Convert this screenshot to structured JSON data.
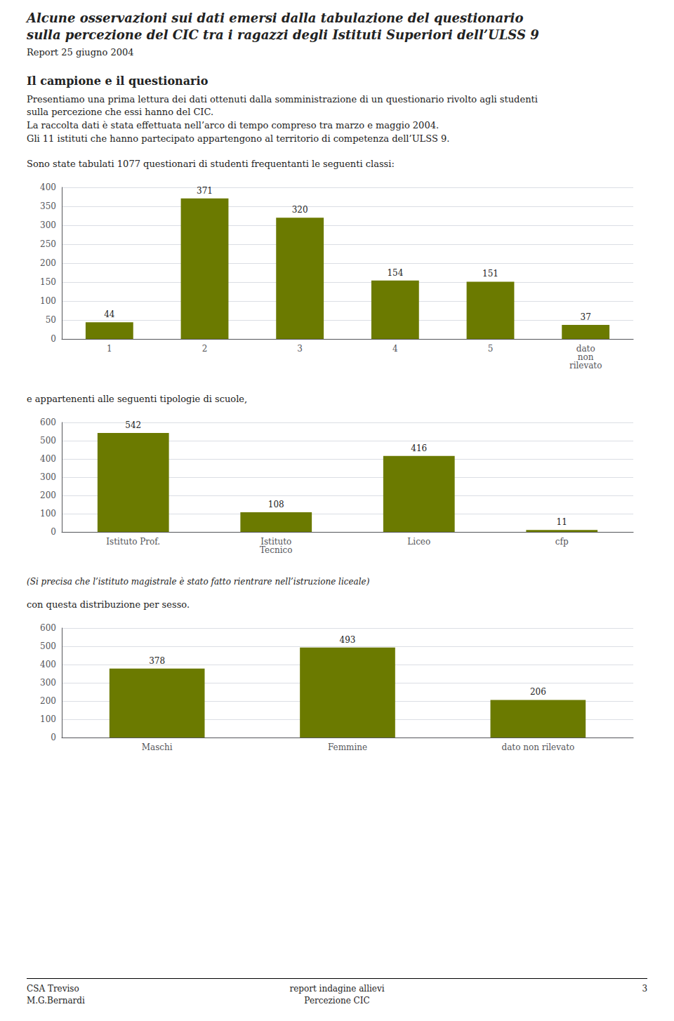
{
  "title": "Alcune osservazioni sui dati emersi dalla tabulazione del questionario\nsulla percezione del CIC tra i ragazzi degli Istituti Superiori dell’ULSS 9",
  "subtitle": "Report 25 giugno 2004",
  "heading": "Il campione e il questionario",
  "paragraphs": [
    "Presentiamo una prima lettura dei dati ottenuti dalla somministrazione di un questionario rivolto agli studenti",
    "sulla percezione che essi hanno del CIC.",
    "La raccolta dati è stata effettuata nell’arco di tempo compreso tra marzo e maggio 2004.",
    "Gli 11 istituti che hanno partecipato appartengono al territorio di competenza dell’ULSS 9."
  ],
  "chart_data": [
    {
      "type": "bar",
      "title": "Sono state tabulati 1077 questionari di studenti frequentanti le seguenti classi:",
      "categories": [
        "1",
        "2",
        "3",
        "4",
        "5",
        "dato\nnon\nrilevato"
      ],
      "values": [
        44,
        371,
        320,
        154,
        151,
        37
      ],
      "color": "#6b7a00",
      "ylim": [
        0,
        400
      ],
      "yticks": [
        0,
        50,
        100,
        150,
        200,
        250,
        300,
        350,
        400
      ],
      "grid": true,
      "data_labels": true
    },
    {
      "type": "bar",
      "title": "e appartenenti alle seguenti tipologie di scuole,",
      "categories": [
        "Istituto Prof.",
        "Istituto\nTecnico",
        "Liceo",
        "cfp"
      ],
      "values": [
        542,
        108,
        416,
        11
      ],
      "color": "#6b7a00",
      "ylim": [
        0,
        600
      ],
      "yticks": [
        0,
        100,
        200,
        300,
        400,
        500,
        600
      ],
      "grid": true,
      "data_labels": true,
      "annotations": [
        "(Si precisa che  l’istituto magistrale è stato fatto rientrare nell’istruzione liceale)"
      ]
    },
    {
      "type": "bar",
      "title": "con questa distribuzione per sesso.",
      "categories": [
        "Maschi",
        "Femmine",
        "dato non rilevato"
      ],
      "values": [
        378,
        493,
        206
      ],
      "color": "#6b7a00",
      "ylim": [
        0,
        600
      ],
      "yticks": [
        0,
        100,
        200,
        300,
        400,
        500,
        600
      ],
      "grid": true,
      "data_labels": true
    }
  ],
  "footer": {
    "left": [
      "CSA Treviso",
      "M.G.Bernardi"
    ],
    "center": [
      "report indagine allievi",
      "Percezione CIC"
    ],
    "right": [
      "3"
    ]
  }
}
